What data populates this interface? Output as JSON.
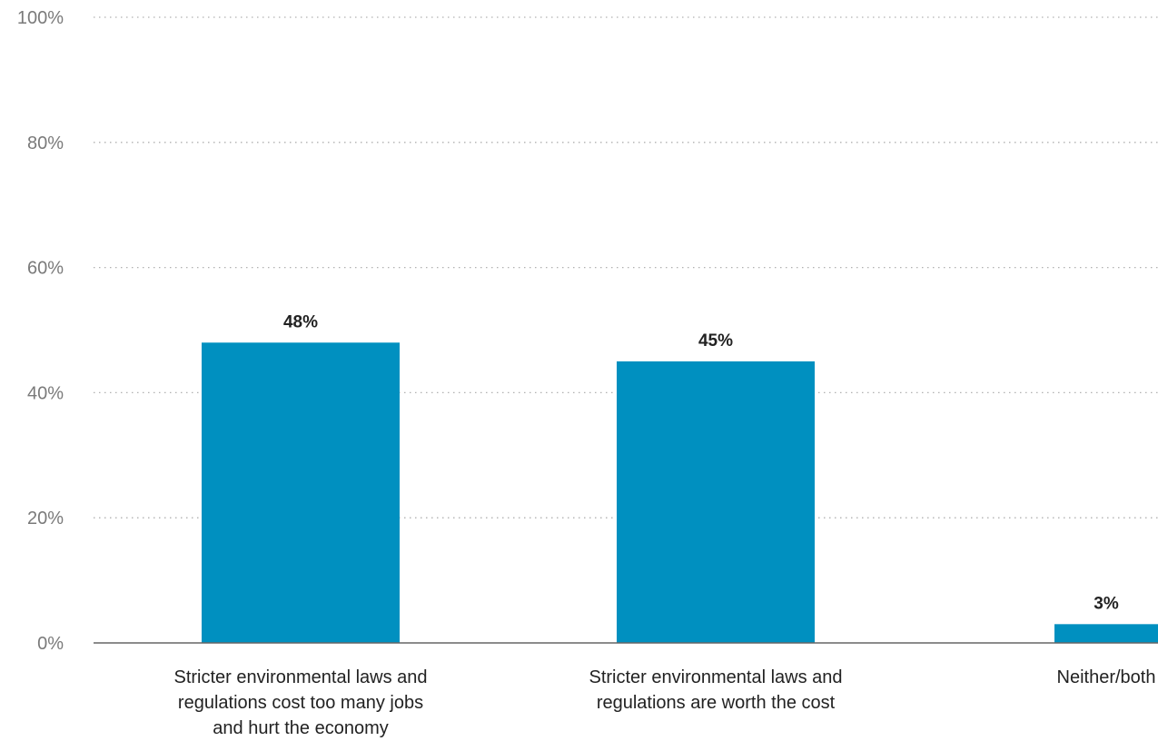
{
  "chart_data": {
    "type": "bar",
    "categories": [
      [
        "Stricter environmental laws and",
        "regulations cost too many jobs",
        "and hurt the economy"
      ],
      [
        "Stricter environmental laws and",
        "regulations are worth the cost"
      ],
      [
        "Neither/both"
      ]
    ],
    "values": [
      48,
      45,
      3
    ],
    "value_labels": [
      "48%",
      "45%",
      "3%"
    ],
    "ylim": [
      0,
      100
    ],
    "yticks": [
      0,
      20,
      40,
      60,
      80,
      100
    ],
    "ytick_labels": [
      "0%",
      "20%",
      "40%",
      "60%",
      "80%",
      "100%"
    ],
    "grid": true,
    "bar_color": "#0090c0",
    "title": "",
    "xlabel": "",
    "ylabel": ""
  }
}
